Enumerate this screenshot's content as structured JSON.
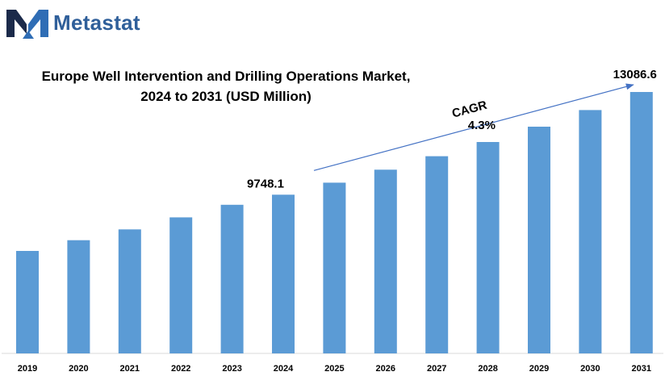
{
  "brand": {
    "name": "Metastat",
    "logo_icon": "metastat-m-logo-icon",
    "colors": {
      "logo_dark": "#1b2a4a",
      "logo_blue": "#2f6db5",
      "text": "#2f5f9a"
    }
  },
  "chart_data": {
    "type": "bar",
    "title": "Europe Well Intervention and Drilling Operations Market,",
    "subtitle": "2024 to 2031 (USD Million)",
    "categories": [
      "2019",
      "2020",
      "2021",
      "2022",
      "2023",
      "2024",
      "2025",
      "2026",
      "2027",
      "2028",
      "2029",
      "2030",
      "2031"
    ],
    "values": [
      7920,
      8270,
      8620,
      9010,
      9420,
      9748.1,
      10140,
      10560,
      11000,
      11460,
      11960,
      12500,
      13086.6
    ],
    "data_labels": {
      "2024": "9748.1",
      "2031": "13086.6"
    },
    "annotation": {
      "label": "CAGR",
      "value": "4.3%",
      "from": "2024",
      "to": "2031"
    },
    "bar_color": "#5b9bd5",
    "arrow_color": "#4472c4",
    "xlabel": "",
    "ylabel": "",
    "grid": false,
    "legend": "none",
    "y_axis_visible": false
  }
}
